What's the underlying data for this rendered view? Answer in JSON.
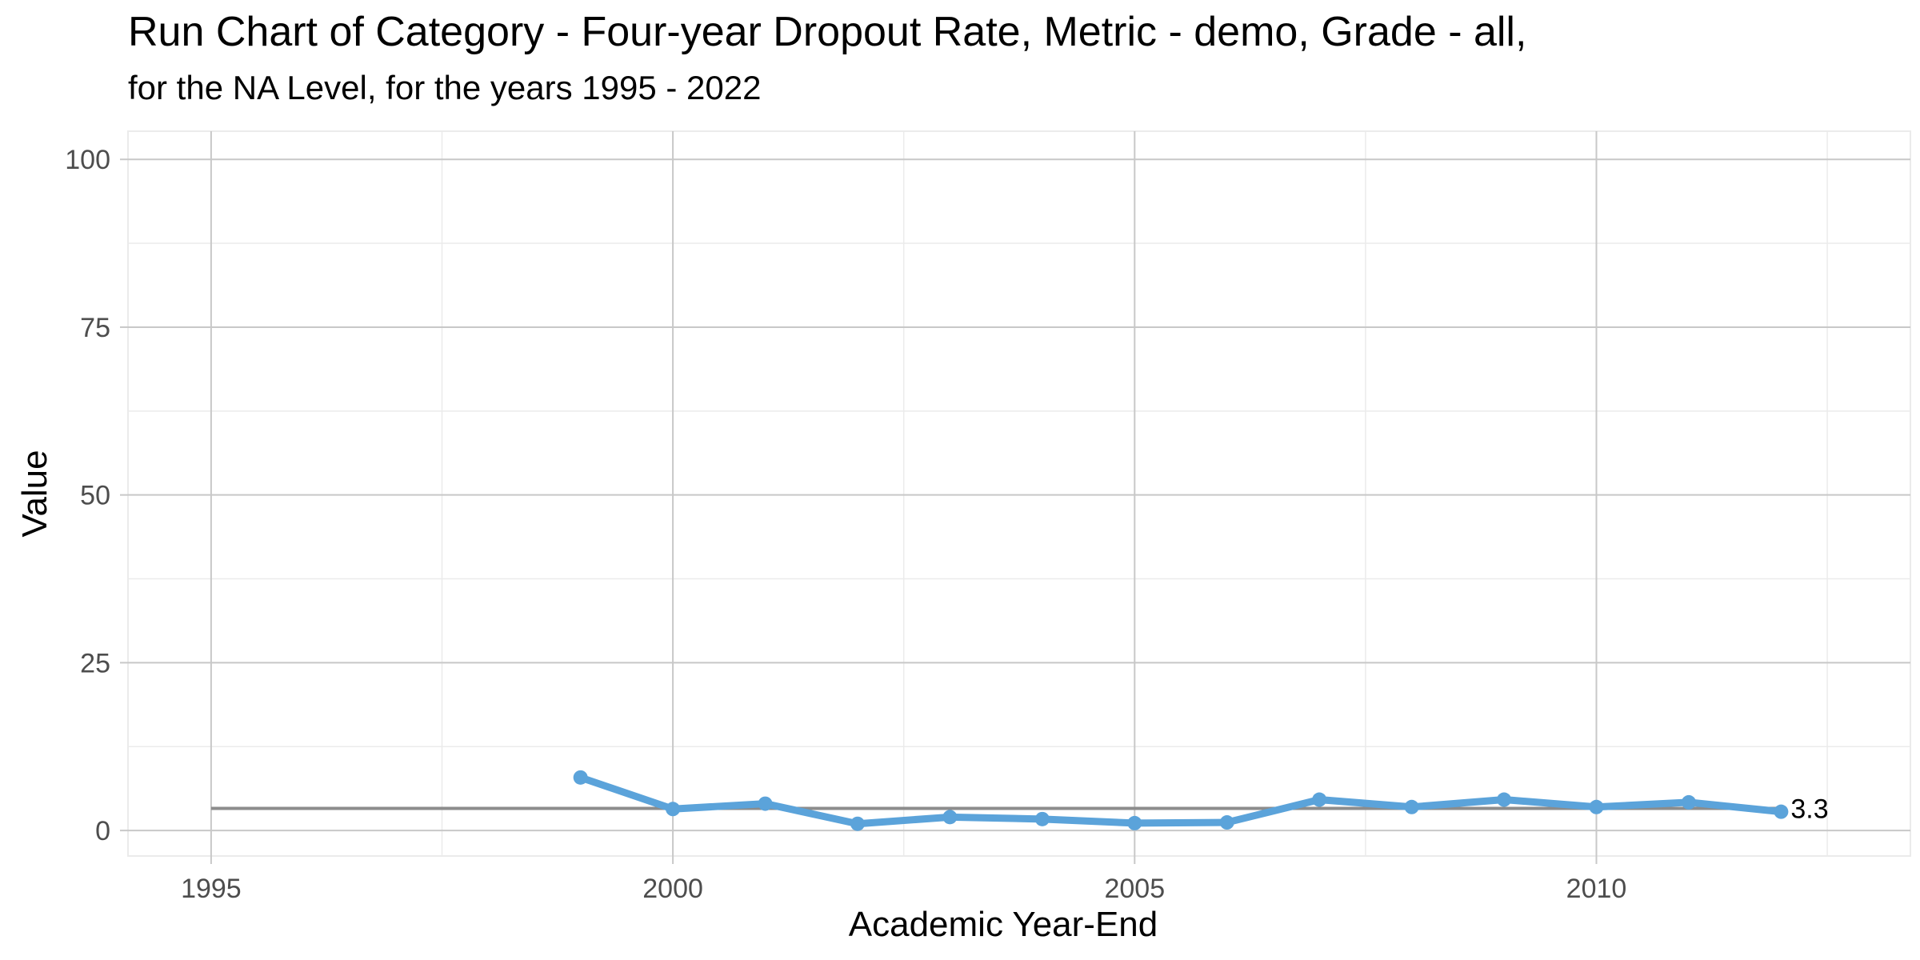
{
  "chart_data": {
    "type": "line",
    "title": "Run Chart of Category - Four-year Dropout Rate, Metric - demo, Grade - all,",
    "subtitle": "for the NA Level, for the years 1995 - 2022",
    "xlabel": "Academic Year-End",
    "ylabel": "Value",
    "xlim": [
      1994.1,
      2013.4
    ],
    "ylim": [
      -3.8,
      104.2
    ],
    "x_ticks": [
      1995,
      2000,
      2005,
      2010
    ],
    "x_tick_labels": [
      "1995",
      "2000",
      "2005",
      "2010"
    ],
    "y_ticks": [
      0,
      25,
      50,
      75,
      100
    ],
    "y_tick_labels": [
      "0",
      "25",
      "50",
      "75",
      "100"
    ],
    "grid": true,
    "series": [
      {
        "x": [
          1999,
          2000,
          2001,
          2002,
          2003,
          2004,
          2005,
          2006,
          2007,
          2008,
          2009,
          2010,
          2011,
          2012
        ],
        "values": [
          7.9,
          3.2,
          4.0,
          1.0,
          2.0,
          1.7,
          1.1,
          1.2,
          4.6,
          3.5,
          4.6,
          3.5,
          4.2,
          2.8
        ],
        "color": "#5ba3da"
      }
    ],
    "reference_line": {
      "value": 3.3,
      "x_start": 1995,
      "x_end": 2012,
      "color": "#8c8c8c"
    },
    "end_label": "3.3"
  }
}
